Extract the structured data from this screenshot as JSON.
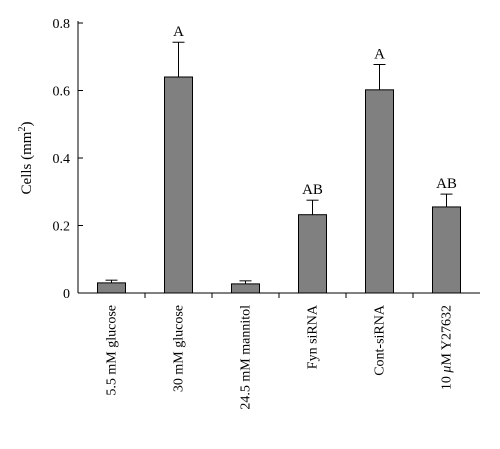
{
  "chart_data": {
    "type": "bar",
    "categories": [
      "5.5 mM glucose",
      "30 mM glucose",
      "24.5 mM mannitol",
      "Fyn siRNA",
      "Cont-siRNA",
      "10 μM Y27632"
    ],
    "values": [
      0.03,
      0.64,
      0.027,
      0.232,
      0.602,
      0.255
    ],
    "errors": [
      0.008,
      0.103,
      0.009,
      0.043,
      0.075,
      0.038
    ],
    "significance": [
      "",
      "A",
      "",
      "AB",
      "A",
      "AB"
    ],
    "ylabel_main": "Cells (mm",
    "ylabel_sup": "2",
    "ylabel_close": ")",
    "yticks": [
      0,
      0.2,
      0.4,
      0.6,
      0.8
    ],
    "ytick_labels": [
      "0",
      "0.2",
      "0.4",
      "0.6",
      "0.8"
    ],
    "ylim": [
      0,
      0.8
    ],
    "bar_color": "#808080"
  }
}
